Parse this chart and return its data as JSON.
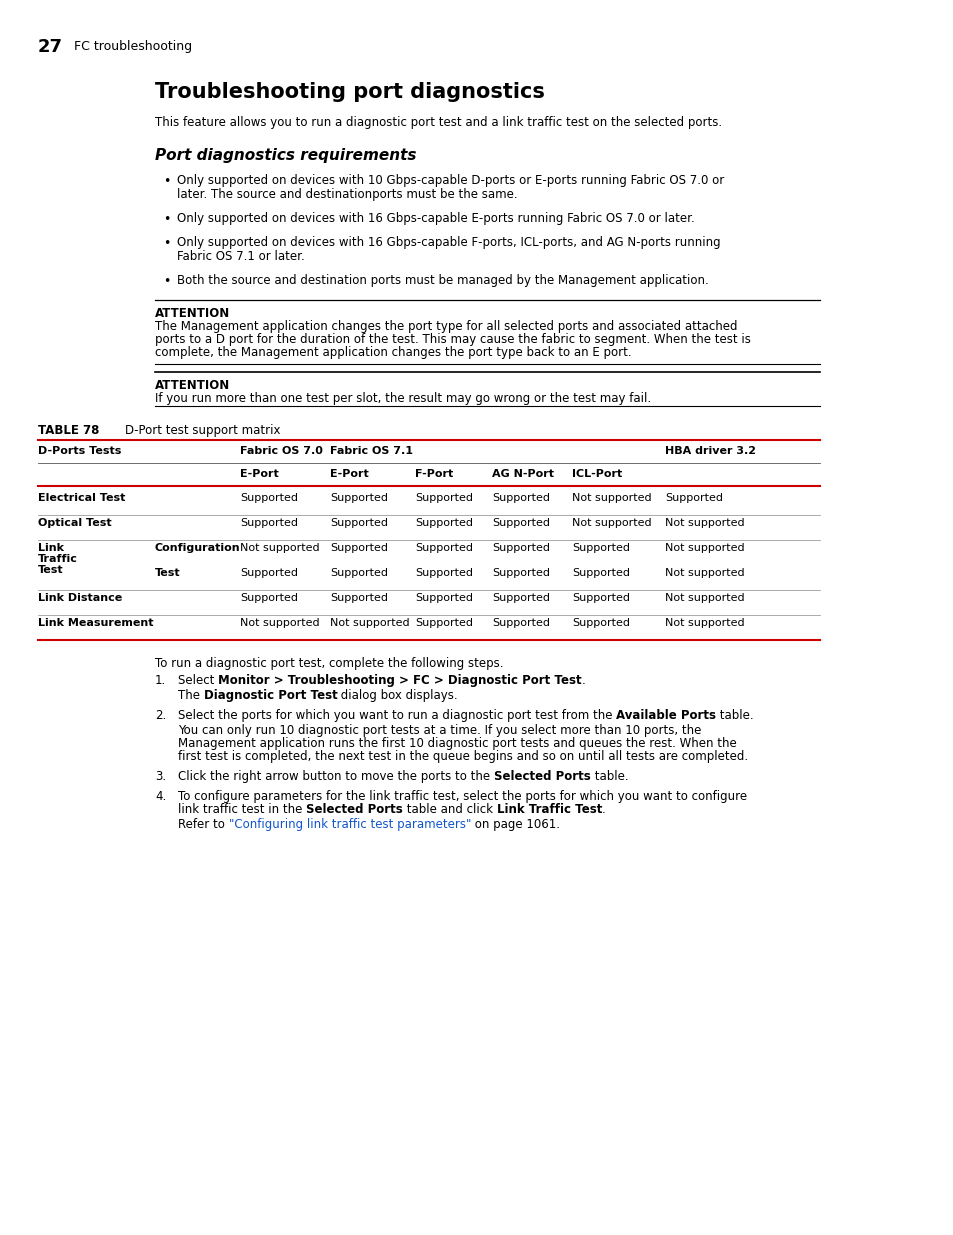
{
  "page_num": "27",
  "page_header": "FC troubleshooting",
  "main_title": "Troubleshooting port diagnostics",
  "intro_text": "This feature allows you to run a diagnostic port test and a link traffic test on the selected ports.",
  "section_title": "Port diagnostics requirements",
  "bullets": [
    "Only supported on devices with 10 Gbps-capable D-ports or E-ports running Fabric OS 7.0 or\nlater. The source and destinationports must be the same.",
    "Only supported on devices with 16 Gbps-capable E-ports running Fabric OS 7.0 or later.",
    "Only supported on devices with 16 Gbps-capable F-ports, ICL-ports, and AG N-ports running\nFabric OS 7.1 or later.",
    "Both the source and destination ports must be managed by the Management application."
  ],
  "attention1_label": "ATTENTION",
  "attention1_text": "The Management application changes the port type for all selected ports and associated attached\nports to a D port for the duration of the test. This may cause the fabric to segment. When the test is\ncomplete, the Management application changes the port type back to an E port.",
  "attention2_label": "ATTENTION",
  "attention2_text": "If you run more than one test per slot, the result may go wrong or the test may fail.",
  "table_label": "TABLE 78",
  "table_title": "D-Port test support matrix",
  "steps_intro": "To run a diagnostic port test, complete the following steps.",
  "bg_color": "#ffffff",
  "text_color": "#000000",
  "red_color": "#cc0000",
  "link_color": "#1155cc"
}
